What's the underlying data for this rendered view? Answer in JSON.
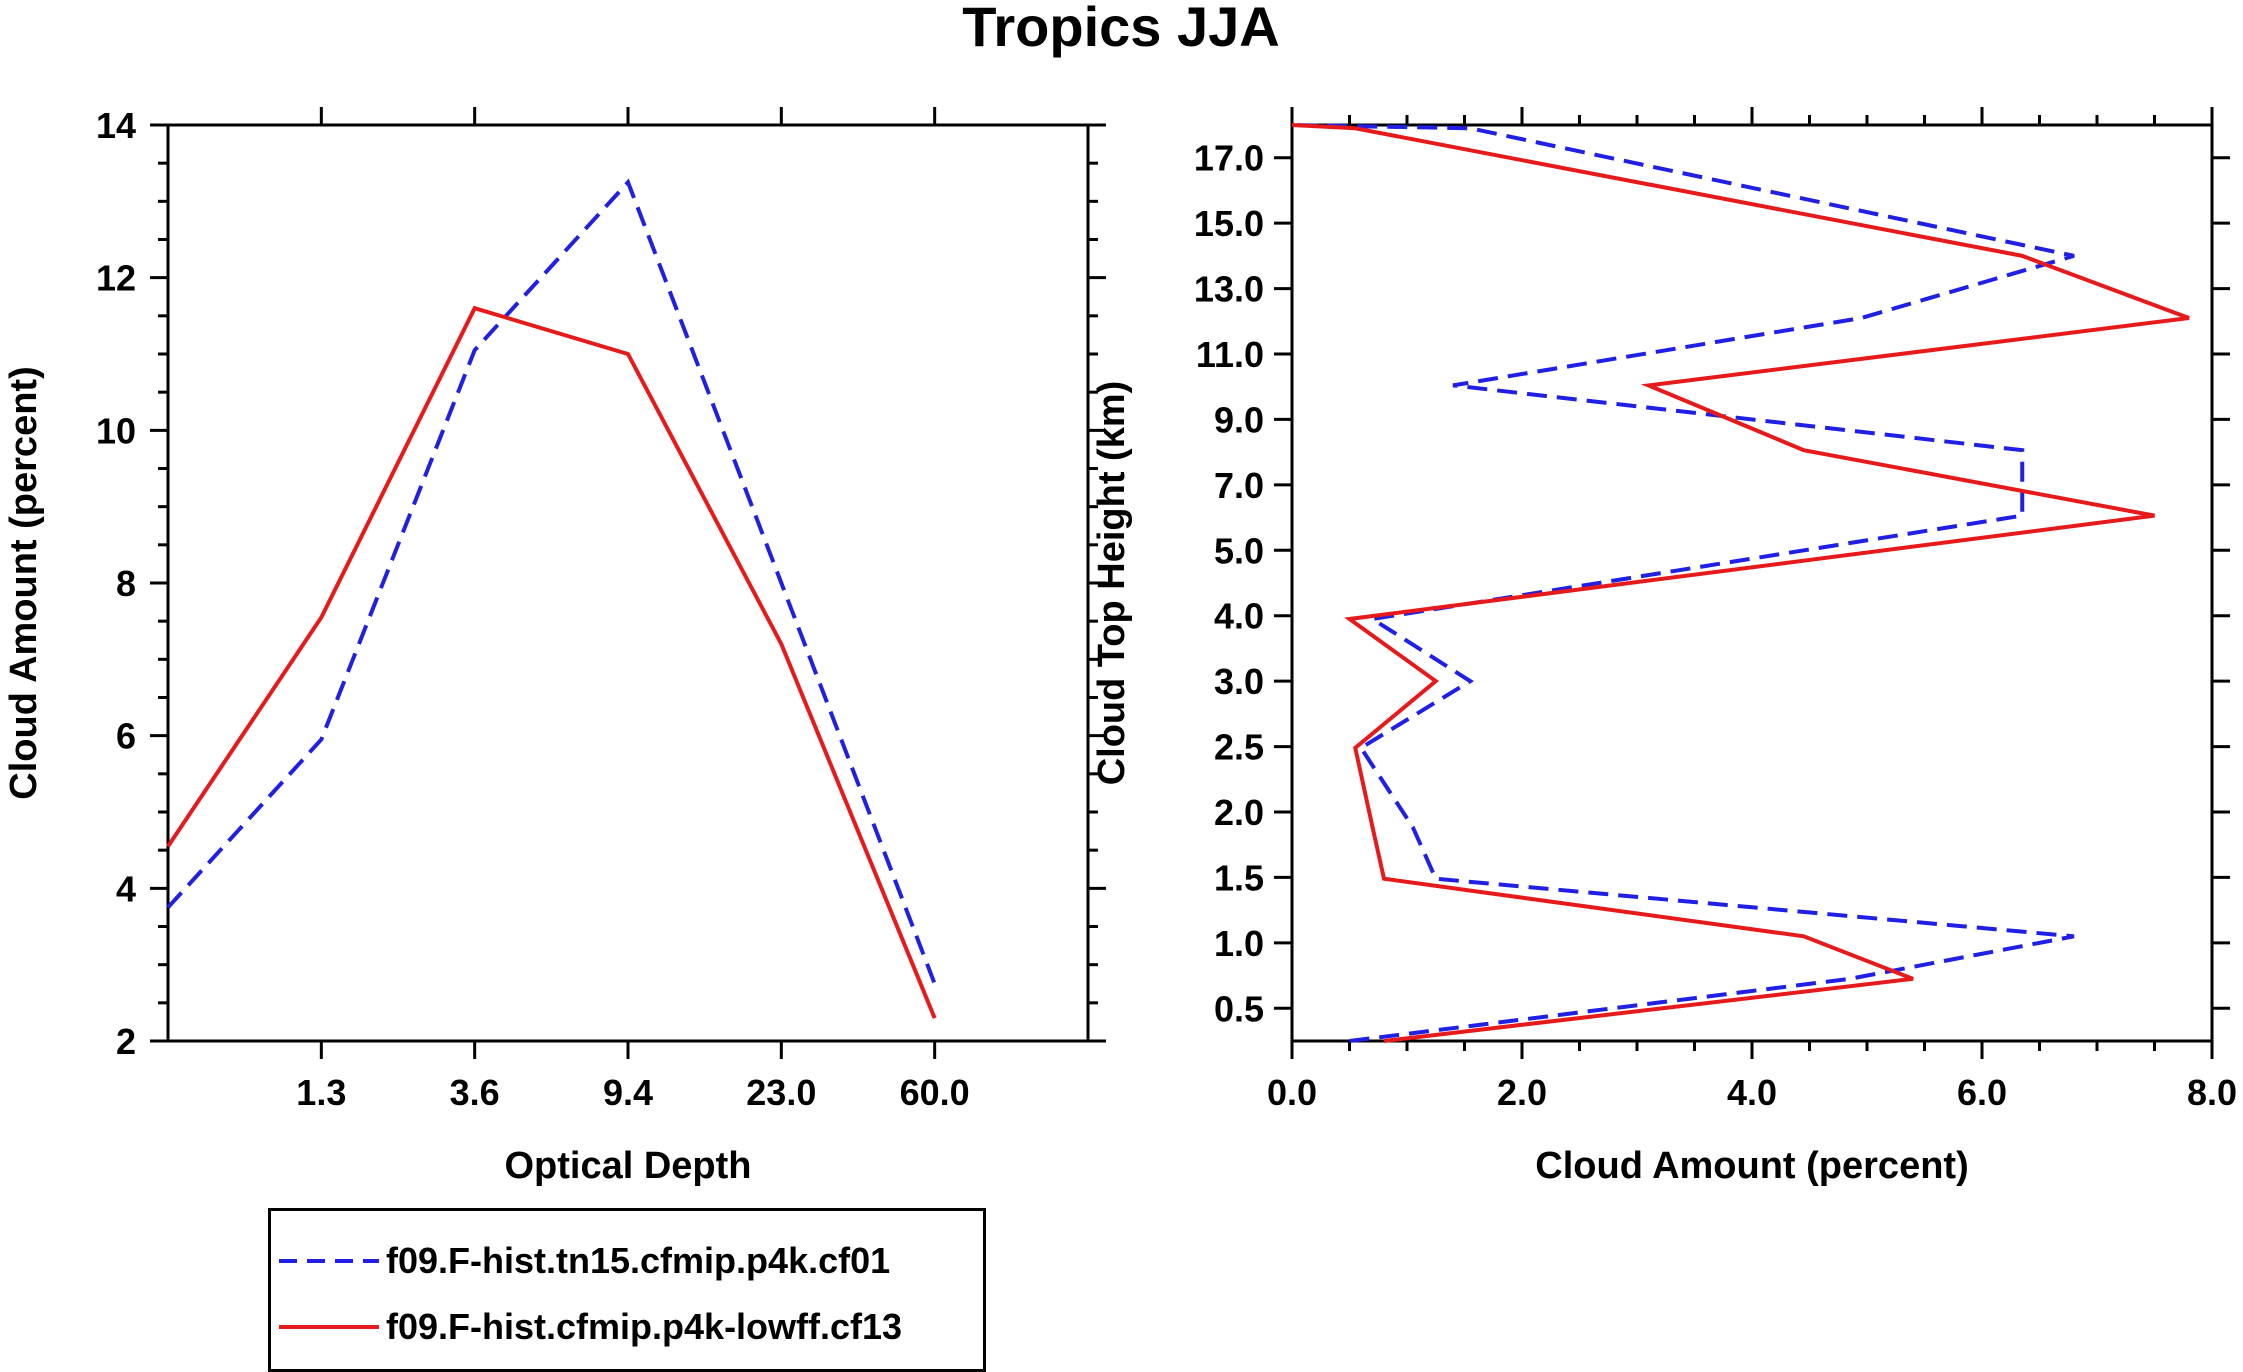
{
  "title": "Tropics JJA",
  "colors": {
    "series1": "#1f1fe6",
    "series2": "#e61a1a",
    "axis": "#000000"
  },
  "chart_data": [
    {
      "type": "line",
      "xlabel": "Optical Depth",
      "ylabel": "Cloud Amount (percent)",
      "x_tick_labels": [
        "1.3",
        "3.6",
        "9.4",
        "23.0",
        "60.0"
      ],
      "y_ticks": [
        2,
        4,
        6,
        8,
        10,
        12,
        14
      ],
      "ylim": [
        2,
        14
      ],
      "x_index_range": [
        0,
        6
      ],
      "x_index": [
        0,
        1,
        2,
        3,
        4,
        5
      ],
      "series": [
        {
          "name": "f09.F-hist.tn15.cfmip.p4k.cf01",
          "style": "dashed",
          "values": [
            3.75,
            5.95,
            11.05,
            13.25,
            8.0,
            2.75
          ]
        },
        {
          "name": "f09.F-hist.cfmip.p4k-lowff.cf13",
          "style": "solid",
          "values": [
            4.55,
            7.55,
            11.6,
            11.0,
            7.2,
            2.3
          ]
        }
      ]
    },
    {
      "type": "line",
      "orientation": "vertical-profile",
      "xlabel": "Cloud Amount (percent)",
      "ylabel": "Cloud Top Height (km)",
      "x_ticks": [
        "0.0",
        "2.0",
        "4.0",
        "6.0",
        "8.0"
      ],
      "xlim": [
        0,
        8
      ],
      "y_tick_labels": [
        "0.5",
        "1.0",
        "1.5",
        "2.0",
        "2.5",
        "3.0",
        "4.0",
        "5.0",
        "7.0",
        "9.0",
        "11.0",
        "13.0",
        "15.0",
        "17.0"
      ],
      "y_index_range": [
        0,
        14
      ],
      "level_index": [
        0,
        1.5,
        2.5,
        3.5,
        4.5,
        5.5,
        6.5,
        7.5,
        9,
        11,
        12,
        13,
        14
      ],
      "series": [
        {
          "name": "f09.F-hist.tn15.cfmip.p4k.cf01",
          "style": "dashed",
          "values": [
            0.5,
            4.85,
            6.8,
            1.25,
            1.05,
            0.6,
            1.55,
            0.7,
            6.35,
            6.35,
            1.4,
            4.95,
            6.8,
            1.55,
            0.0
          ]
        },
        {
          "name": "f09.F-hist.cfmip.p4k-lowff.cf13",
          "style": "solid",
          "values": [
            0.8,
            5.4,
            4.45,
            0.8,
            0.7,
            0.55,
            1.25,
            0.5,
            7.5,
            4.45,
            3.1,
            7.8,
            6.35,
            0.55,
            0.0
          ]
        }
      ],
      "series_level_index": [
        0.25,
        0.8,
        1.5,
        2.5,
        3.3,
        4.5,
        5.5,
        6.5,
        8.5,
        10,
        11,
        12,
        13.5,
        15.5,
        17.5
      ]
    }
  ],
  "legend": {
    "items": [
      {
        "label": "f09.F-hist.tn15.cfmip.p4k.cf01",
        "style": "dashed"
      },
      {
        "label": "f09.F-hist.cfmip.p4k-lowff.cf13",
        "style": "solid"
      }
    ]
  }
}
